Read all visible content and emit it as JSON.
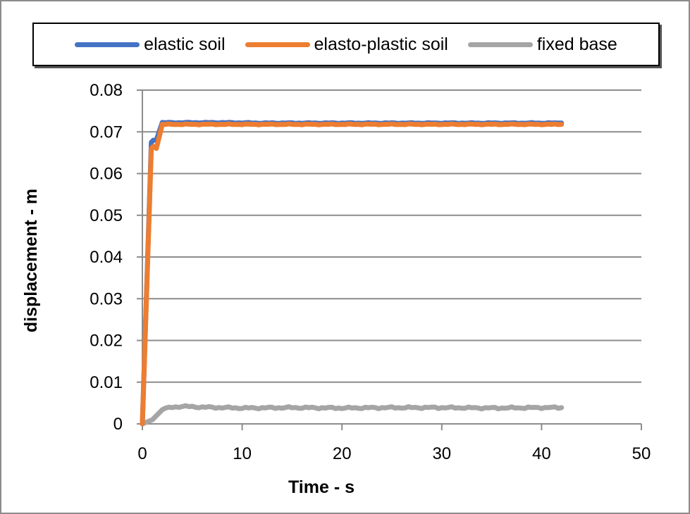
{
  "chart_data": {
    "type": "line",
    "title": "",
    "xlabel": "Time - s",
    "ylabel": "displacement - m",
    "xlim": [
      0,
      50
    ],
    "ylim": [
      0,
      0.08
    ],
    "xticks": [
      "0",
      "10",
      "20",
      "30",
      "40",
      "50"
    ],
    "yticks": [
      "0",
      "0.01",
      "0.02",
      "0.03",
      "0.04",
      "0.05",
      "0.06",
      "0.07",
      "0.08"
    ],
    "grid": "horizontal",
    "legend_position": "top",
    "series": [
      {
        "name": "elastic soil",
        "color": "#4472C4",
        "x": [
          0,
          0.9,
          1.1,
          1.4,
          2.0,
          4,
          8,
          12,
          16,
          20,
          24,
          28,
          32,
          36,
          40,
          42
        ],
        "y": [
          0,
          0.0675,
          0.068,
          0.068,
          0.0722,
          0.0722,
          0.0722,
          0.0721,
          0.0721,
          0.0721,
          0.0721,
          0.0721,
          0.0721,
          0.0721,
          0.0721,
          0.0721
        ]
      },
      {
        "name": "elasto-plastic soil",
        "color": "#ED7D31",
        "x": [
          0,
          0.9,
          1.1,
          1.4,
          2.0,
          4,
          8,
          12,
          16,
          20,
          24,
          28,
          32,
          36,
          40,
          42
        ],
        "y": [
          0,
          0.066,
          0.0665,
          0.066,
          0.0718,
          0.0718,
          0.0718,
          0.0718,
          0.0718,
          0.0718,
          0.0718,
          0.0718,
          0.0718,
          0.0718,
          0.0718,
          0.0718
        ]
      },
      {
        "name": "fixed base",
        "color": "#A5A5A5",
        "x": [
          0,
          1,
          2,
          3,
          4,
          6,
          8,
          10,
          15,
          20,
          25,
          30,
          35,
          40,
          42
        ],
        "y": [
          0,
          0.001,
          0.0035,
          0.004,
          0.0042,
          0.004,
          0.0039,
          0.0038,
          0.0039,
          0.0038,
          0.0039,
          0.0039,
          0.0038,
          0.0039,
          0.0039
        ]
      }
    ]
  }
}
